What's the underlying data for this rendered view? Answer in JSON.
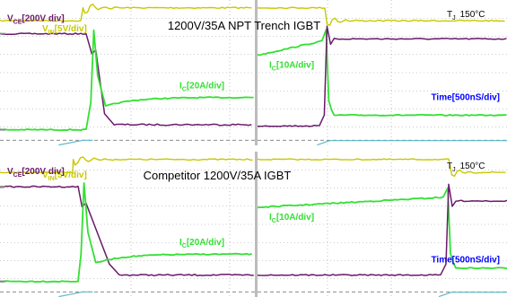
{
  "colors": {
    "vin": "#c8c800",
    "vce": "#6a1a6a",
    "ic": "#33e033",
    "time": "#0000ff",
    "grid": "#9a9aa6",
    "separator": "#bcbcbc",
    "ref": "#5fb8c8",
    "ic_low": "#4f7fe0"
  },
  "chart_data": [
    {
      "type": "line",
      "title": "1200V/35A NPT Trench IGBT",
      "annotation": "TJ 150°C",
      "tj": {
        "symbol": "T",
        "sub": "J",
        "value": "150°C"
      },
      "channels": {
        "vin": {
          "name": "V",
          "sub": "IN",
          "scale": "[5V/div]"
        },
        "vce": {
          "name": "V",
          "sub": "CE",
          "scale": "[200V div]"
        },
        "ic_left": {
          "name": "I",
          "sub": "C",
          "scale": "[20A/div]"
        },
        "ic_right": {
          "name": "I",
          "sub": "C",
          "scale": "[10A/div]"
        }
      },
      "time_label": "Time[500nS/div]",
      "grid": true,
      "divisions": {
        "x": 5,
        "y": 8
      },
      "turn_off": {
        "vce_off_div": 1.86,
        "vce_on_div": 6.86,
        "vce_overshoot_div": 6.45,
        "ic_on_div": 5.36,
        "ic_off_div": 7.14,
        "ic_transition_start_div": 0.9,
        "ic_transition_end_div": 1.05,
        "vin_high_div": 0.43,
        "vin_low_div": 1.14,
        "vin_step_div": 0.85
      },
      "turn_on": {
        "vce_high_div": 2.14,
        "vce_low_div": 6.93,
        "vce_step_div": 1.1,
        "ic_initial_div": 3.04,
        "ic_final_div": 2.21,
        "ic_off_div": 6.14,
        "ic_peak_div": 1.64,
        "vin_low_div": 1.14,
        "vin_high_div": 0.43,
        "vin_step_div": 1.1
      }
    },
    {
      "type": "line",
      "title": "Competitor 1200V/35A IGBT",
      "annotation": "TJ 150°C",
      "tj": {
        "symbol": "T",
        "sub": "J",
        "value": "150°C"
      },
      "channels": {
        "vin": {
          "name": "V",
          "sub": "IN",
          "scale": "[5V/div]"
        },
        "vce": {
          "name": "V",
          "sub": "CE",
          "scale": "[200V div]"
        },
        "ic_left": {
          "name": "I",
          "sub": "C",
          "scale": "[20A/div]"
        },
        "ic_right": {
          "name": "I",
          "sub": "C",
          "scale": "[10A/div]"
        }
      },
      "time_label": "Time[500nS/div]",
      "grid": true,
      "divisions": {
        "x": 5,
        "y": 8
      },
      "turn_off": {
        "vce_off_div": 1.93,
        "vce_on_div": 6.79,
        "vce_overshoot_div": 6.5,
        "ic_on_div": 5.64,
        "ic_off_div": 7.14,
        "ic_transition_start_div": 0.8,
        "ic_transition_end_div": 1.1,
        "vin_high_div": 0.43,
        "vin_low_div": 1.14,
        "vin_step_div": 0.75
      },
      "turn_on": {
        "vce_high_div": 2.71,
        "vce_low_div": 6.79,
        "vce_step_div": 3.05,
        "ic_initial_div": 3.07,
        "ic_final_div": 2.5,
        "ic_off_div": 6.21,
        "ic_peak_div": 2.0,
        "vin_low_div": 1.14,
        "vin_high_div": 0.43,
        "vin_step_div": 3.1
      }
    }
  ]
}
